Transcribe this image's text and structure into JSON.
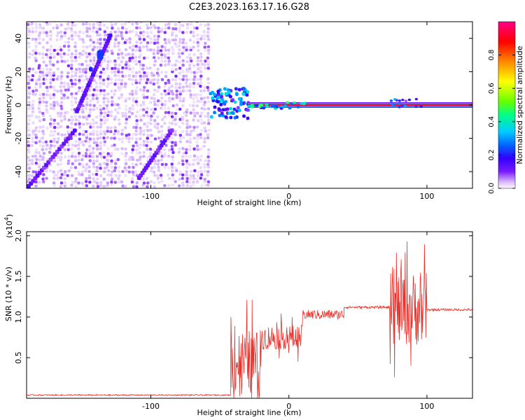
{
  "title": "C2E3.2023.163.17.16.G28",
  "chart_data": [
    {
      "type": "heatmap",
      "xlabel": "Height of straight line (km)",
      "ylabel": "Frequency (Hz)",
      "xlim": [
        -190,
        133
      ],
      "ylim": [
        -50,
        50
      ],
      "xticks": [
        -100,
        0,
        100
      ],
      "yticks": [
        -40,
        -20,
        0,
        20,
        40
      ],
      "colorbar": {
        "label": "Normalized spectral amplitude",
        "range": [
          0,
          1
        ],
        "ticks": [
          0.0,
          0.2,
          0.4,
          0.6,
          0.8
        ],
        "colormap": [
          "#ffffff",
          "#d6b3ff",
          "#7a1cff",
          "#3300ff",
          "#0066ff",
          "#00ccff",
          "#00ff88",
          "#66ff00",
          "#ffff00",
          "#ff8800",
          "#ff0000",
          "#ff0088"
        ]
      },
      "features": {
        "noise_region_x": [
          -190,
          -58
        ],
        "tone_line": {
          "x": [
            -30,
            133
          ],
          "frequency": 0,
          "amplitude": 0.95
        },
        "transition_x": [
          -58,
          -30
        ],
        "streak_1": {
          "x": [
            -155,
            -130
          ],
          "frequency": [
            -5,
            42
          ]
        },
        "streak_2": {
          "x": [
            -190,
            -155
          ],
          "frequency": [
            -50,
            -15
          ]
        },
        "streak_3": {
          "x": [
            -110,
            -85
          ],
          "frequency": [
            -45,
            -15
          ]
        }
      }
    },
    {
      "type": "line",
      "xlabel": "Height of straight line (km)",
      "ylabel": "SNR (10 * v/v)",
      "exponent_label": "(x10",
      "exponent_power": "4",
      "xlim": [
        -190,
        133
      ],
      "ylim": [
        0,
        2.05
      ],
      "xticks": [
        -100,
        0,
        100
      ],
      "yticks": [
        0.5,
        1.0,
        1.5,
        2.0
      ],
      "ytick_labels": [
        "0.5",
        "1.0",
        "1.5",
        "2.0"
      ],
      "series": [
        {
          "color": "#e8302a",
          "segments": [
            {
              "x": [
                -190,
                -42
              ],
              "level": 0.04,
              "noise": 0.015
            },
            {
              "x": [
                -42,
                -20
              ],
              "level": 0.45,
              "noise": 0.8
            },
            {
              "x": [
                -20,
                10
              ],
              "level": 0.75,
              "noise": 0.3
            },
            {
              "x": [
                10,
                40
              ],
              "level": 1.03,
              "noise": 0.12
            },
            {
              "x": [
                40,
                73
              ],
              "level": 1.12,
              "noise": 0.03
            },
            {
              "x": [
                73,
                100
              ],
              "level": 1.1,
              "noise": 0.9
            },
            {
              "x": [
                100,
                133
              ],
              "level": 1.09,
              "noise": 0.03
            }
          ]
        }
      ]
    }
  ]
}
